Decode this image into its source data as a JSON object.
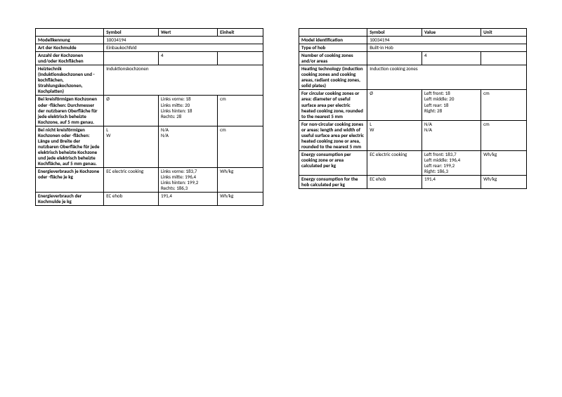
{
  "left": {
    "headers": [
      "",
      "Symbol",
      "Wert",
      "Einheit"
    ],
    "rows": [
      {
        "label": "Modellkennung",
        "symbol": "10034194",
        "value": "",
        "unit": "",
        "span": 3
      },
      {
        "label": "Art der Kochmulde",
        "symbol": "Einbaukochfeld",
        "value": "",
        "unit": "",
        "span": 3
      },
      {
        "label": "Anzahl der Kochzonen und/oder Kochflächen",
        "symbol": "",
        "value": "4",
        "unit": ""
      },
      {
        "label": "Heiztechnik (Induktionskochzonen und -kochflächen, Strahlungskochzonen, Kochplatten)",
        "symbol": "Induktionskochzonen",
        "value": "",
        "unit": "",
        "span": 3
      },
      {
        "label": "Bei kreisförmigen Kochzonen oder -flächen: Durchmesser der nutzbaren Oberfläche für jede elektrisch beheizte Kochzone, auf 5 mm genau.",
        "symbol": "Ø",
        "value": "Links vorne: 18\nLinks mitte: 20\nLinks hinten: 18\nRechts: 28",
        "unit": "cm"
      },
      {
        "label": "Bei nicht kreisförmigen Kochzonen oder -flächen: Länge und Breite der nutzbaren Oberfläche für jede elektrisch beheizte Kochzone und jede elektrisch beheizte Kochfläche, auf 5 mm genau.",
        "symbol": "L\nW",
        "value": "N/A\nN/A",
        "unit": "cm"
      },
      {
        "label": "Energieverbrauch je Kochzone oder -fläche je kg",
        "symbol": "EC electric cooking",
        "value": "Links vorne: 183,7\nLinks mitte: 196,4\nLinks hinten: 199,2\nRechts: 186,3",
        "unit": "Wh/kg"
      },
      {
        "label": "Energieverbrauch der Kochmulde je kg",
        "symbol": "EC ehob",
        "value": "191,4",
        "unit": "Wh/kg"
      }
    ]
  },
  "right": {
    "headers": [
      "",
      "Symbol",
      "Value",
      "Unit"
    ],
    "rows": [
      {
        "label": "Model identification",
        "symbol": "10034194",
        "value": "",
        "unit": "",
        "span": 3
      },
      {
        "label": "Type of hob",
        "symbol": "Built-in Hob",
        "value": "",
        "unit": "",
        "span": 3
      },
      {
        "label": "Number of cooking zones and/or areas",
        "symbol": "",
        "value": "4",
        "unit": ""
      },
      {
        "label": "Heating technology (induction cooking zones and cooking areas, radiant cooking zones, solid plates)",
        "symbol": "Induction cooking zones",
        "value": "",
        "unit": "",
        "span": 3
      },
      {
        "label": "For circular cooking zones or area: diameter of useful surface area per electric heated cooking zone, rounded to the nearest 5 mm",
        "symbol": "Ø",
        "value": "Left front: 18\nLeft middle: 20\nLeft rear: 18\nRight: 28",
        "unit": "cm"
      },
      {
        "label": "For non-circular cooking zones or areas: length and width of useful surface area per electric heated cooking zone or area, rounded to the nearest 5 mm",
        "symbol": "L\nW",
        "value": "N/A\nN/A",
        "unit": "cm"
      },
      {
        "label": "Energy consumption per cooking zone or area calculated per kg",
        "symbol": "EC electric cooking",
        "value": "Left front: 183,7\nLeft middle: 196,4\nLeft rear: 199,2\nRight: 186,3",
        "unit": "Wh/kg"
      },
      {
        "label": "Energy consumption for the hob calculated per kg",
        "symbol": "EC ehob",
        "value": "191,4",
        "unit": "Wh/kg"
      }
    ]
  }
}
